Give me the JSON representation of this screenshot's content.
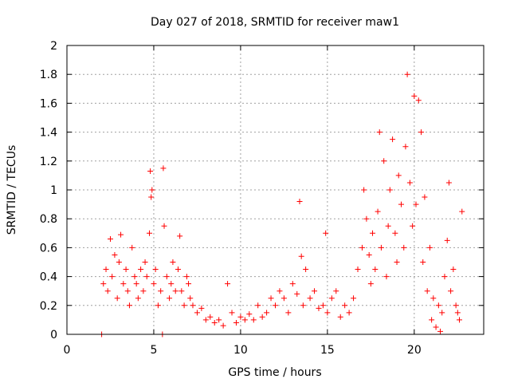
{
  "chart_data": {
    "type": "scatter",
    "title": "Day 027 of 2018, SRMTID for receiver maw1",
    "xlabel": "GPS time / hours",
    "ylabel": "SRMTID / TECUs",
    "xlim": [
      0,
      24
    ],
    "ylim": [
      0,
      2
    ],
    "xticks": [
      0,
      5,
      10,
      15,
      20
    ],
    "yticks": [
      0,
      0.2,
      0.4,
      0.6,
      0.8,
      1,
      1.2,
      1.4,
      1.6,
      1.8,
      2
    ],
    "grid": true,
    "marker": "+",
    "series": [
      {
        "name": "SRMTID",
        "color": "#ff0000",
        "x": [
          2.0,
          2.1,
          2.25,
          2.35,
          2.5,
          2.6,
          2.75,
          2.9,
          3.0,
          3.1,
          3.25,
          3.4,
          3.5,
          3.6,
          3.75,
          3.9,
          4.0,
          4.1,
          4.25,
          4.4,
          4.5,
          4.6,
          4.75,
          4.8,
          4.85,
          4.9,
          5.0,
          5.1,
          5.25,
          5.4,
          5.5,
          5.55,
          5.6,
          5.75,
          5.9,
          6.0,
          6.1,
          6.25,
          6.4,
          6.5,
          6.6,
          6.75,
          6.9,
          7.0,
          7.1,
          7.25,
          7.5,
          7.75,
          8.0,
          8.25,
          8.5,
          8.75,
          9.0,
          9.25,
          9.5,
          9.75,
          10.0,
          10.25,
          10.5,
          10.75,
          11.0,
          11.25,
          11.5,
          11.75,
          12.0,
          12.25,
          12.5,
          12.75,
          13.0,
          13.25,
          13.4,
          13.5,
          13.6,
          13.75,
          14.0,
          14.25,
          14.5,
          14.75,
          14.9,
          15.0,
          15.25,
          15.5,
          15.75,
          16.0,
          16.25,
          16.5,
          16.75,
          17.0,
          17.1,
          17.25,
          17.4,
          17.5,
          17.6,
          17.75,
          17.9,
          18.0,
          18.1,
          18.25,
          18.4,
          18.5,
          18.6,
          18.75,
          18.9,
          19.0,
          19.1,
          19.25,
          19.4,
          19.5,
          19.6,
          19.75,
          19.9,
          20.0,
          20.1,
          20.25,
          20.4,
          20.5,
          20.6,
          20.75,
          20.9,
          21.0,
          21.1,
          21.25,
          21.4,
          21.5,
          21.6,
          21.75,
          21.9,
          22.0,
          22.1,
          22.25,
          22.4,
          22.5,
          22.6,
          22.75
        ],
        "y": [
          0.0,
          0.35,
          0.45,
          0.3,
          0.66,
          0.4,
          0.55,
          0.25,
          0.5,
          0.69,
          0.35,
          0.45,
          0.3,
          0.2,
          0.6,
          0.4,
          0.35,
          0.25,
          0.45,
          0.3,
          0.5,
          0.4,
          0.7,
          1.13,
          0.95,
          1.0,
          0.35,
          0.45,
          0.2,
          0.3,
          0.0,
          1.15,
          0.75,
          0.4,
          0.25,
          0.35,
          0.5,
          0.3,
          0.45,
          0.68,
          0.3,
          0.2,
          0.4,
          0.35,
          0.25,
          0.2,
          0.15,
          0.18,
          0.1,
          0.12,
          0.08,
          0.1,
          0.06,
          0.35,
          0.15,
          0.08,
          0.12,
          0.1,
          0.14,
          0.1,
          0.2,
          0.12,
          0.15,
          0.25,
          0.2,
          0.3,
          0.25,
          0.15,
          0.35,
          0.28,
          0.92,
          0.54,
          0.2,
          0.45,
          0.25,
          0.3,
          0.18,
          0.2,
          0.7,
          0.15,
          0.25,
          0.3,
          0.12,
          0.2,
          0.15,
          0.25,
          0.45,
          0.6,
          1.0,
          0.8,
          0.55,
          0.35,
          0.7,
          0.45,
          0.85,
          1.4,
          0.6,
          1.2,
          0.4,
          0.75,
          1.0,
          1.35,
          0.7,
          0.5,
          1.1,
          0.9,
          0.6,
          1.3,
          1.8,
          1.05,
          0.75,
          1.65,
          0.9,
          1.62,
          1.4,
          0.5,
          0.95,
          0.3,
          0.6,
          0.1,
          0.25,
          0.05,
          0.2,
          0.02,
          0.15,
          0.4,
          0.65,
          1.05,
          0.3,
          0.45,
          0.2,
          0.15,
          0.1,
          0.85
        ]
      }
    ]
  }
}
